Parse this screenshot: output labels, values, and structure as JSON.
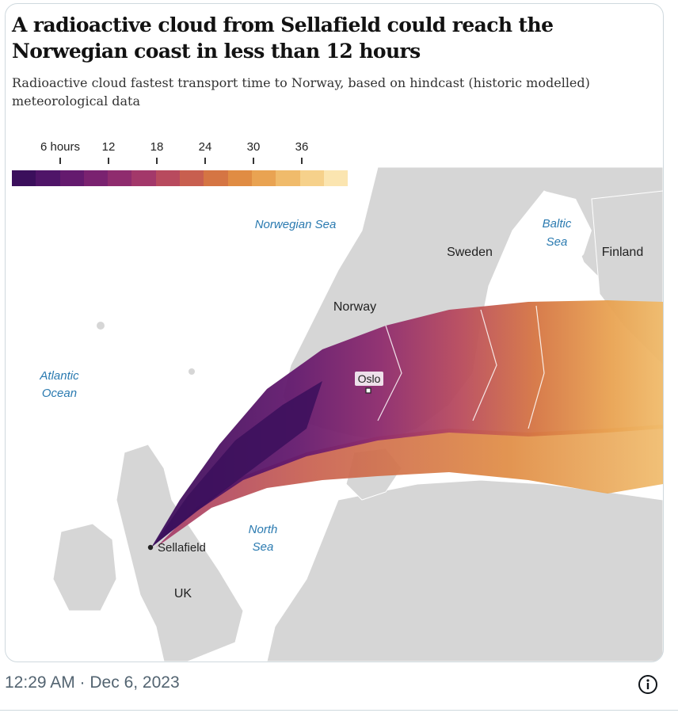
{
  "header": {
    "title": "A radioactive cloud from Sellafield could reach the Norwegian coast in less than 12 hours",
    "subtitle": "Radioactive cloud fastest transport time to Norway, based on hindcast (historic modelled) meteorological data"
  },
  "legend": {
    "tick_labels": [
      "6 hours",
      "12",
      "18",
      "24",
      "30",
      "36"
    ],
    "colors": [
      "#3b0f5c",
      "#4f1568",
      "#641a6e",
      "#7a2270",
      "#8f2c6e",
      "#a3386a",
      "#b84a5e",
      "#c85f4f",
      "#d57543",
      "#e08c43",
      "#e9a352",
      "#f0bb6b",
      "#f6d18b",
      "#fbe5b0"
    ]
  },
  "map": {
    "labels": {
      "norwegian_sea": "Norwegian Sea",
      "baltic_sea_1": "Baltic",
      "baltic_sea_2": "Sea",
      "atlantic_1": "Atlantic",
      "atlantic_2": "Ocean",
      "north_sea_1": "North",
      "north_sea_2": "Sea",
      "sweden": "Sweden",
      "finland": "Finland",
      "norway": "Norway",
      "oslo": "Oslo",
      "sellafield": "Sellafield",
      "uk": "UK"
    },
    "colors": {
      "land": "#d6d6d6",
      "sea_label": "#2a7ab0",
      "land_label": "#222222"
    }
  },
  "footer": {
    "timestamp": "12:29 AM · Dec 6, 2023",
    "info_icon": "info-icon"
  }
}
